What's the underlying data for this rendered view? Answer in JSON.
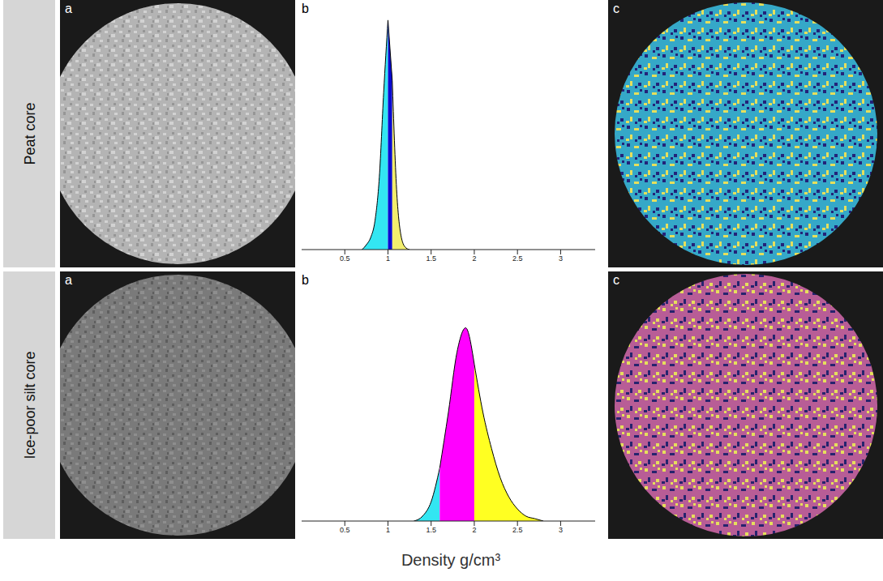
{
  "row_labels": [
    "Peat core",
    "Ice-poor silt core"
  ],
  "panel_letters": [
    "a",
    "b",
    "c"
  ],
  "xlabel": "Density g/cm³",
  "chart_data": [
    {
      "type": "area",
      "x": [
        0.7,
        0.75,
        0.8,
        0.85,
        0.9,
        0.95,
        1.0,
        1.05,
        1.1,
        1.15,
        1.2,
        1.25
      ],
      "series": [
        {
          "color": "#33e6f2",
          "values": [
            0,
            2,
            5,
            12,
            30,
            65,
            95,
            null,
            null,
            null,
            null,
            null
          ]
        },
        {
          "color": "#0a0ad2",
          "values": [
            null,
            null,
            null,
            null,
            null,
            null,
            95,
            70,
            null,
            null,
            null,
            null
          ]
        },
        {
          "color": "#f2ee6e",
          "values": [
            null,
            null,
            null,
            null,
            null,
            null,
            null,
            70,
            25,
            6,
            1,
            0
          ]
        }
      ],
      "xlim": [
        0,
        3.4
      ],
      "xticks": [
        0.5,
        1,
        1.5,
        2,
        2.5,
        3
      ],
      "ylim": [
        0,
        100
      ],
      "tick_labels": "x"
    },
    {
      "type": "area",
      "x": [
        1.3,
        1.4,
        1.5,
        1.6,
        1.7,
        1.8,
        1.9,
        2.0,
        2.1,
        2.2,
        2.3,
        2.4,
        2.5,
        2.6,
        2.7,
        2.8
      ],
      "series": [
        {
          "color": "#33e6f2",
          "values": [
            0,
            2,
            8,
            22,
            null,
            null,
            null,
            null,
            null,
            null,
            null,
            null,
            null,
            null,
            null,
            null
          ]
        },
        {
          "color": "#ff00ff",
          "values": [
            null,
            null,
            null,
            22,
            45,
            70,
            80,
            65,
            null,
            null,
            null,
            null,
            null,
            null,
            null,
            null
          ]
        },
        {
          "color": "#ffff22",
          "values": [
            null,
            null,
            null,
            null,
            null,
            null,
            null,
            65,
            45,
            30,
            18,
            10,
            5,
            2,
            1,
            0
          ]
        }
      ],
      "xlim": [
        0,
        3.4
      ],
      "xticks": [
        0.5,
        1,
        1.5,
        2,
        2.5,
        3
      ],
      "ylim": [
        0,
        100
      ],
      "tick_labels": "x"
    }
  ]
}
